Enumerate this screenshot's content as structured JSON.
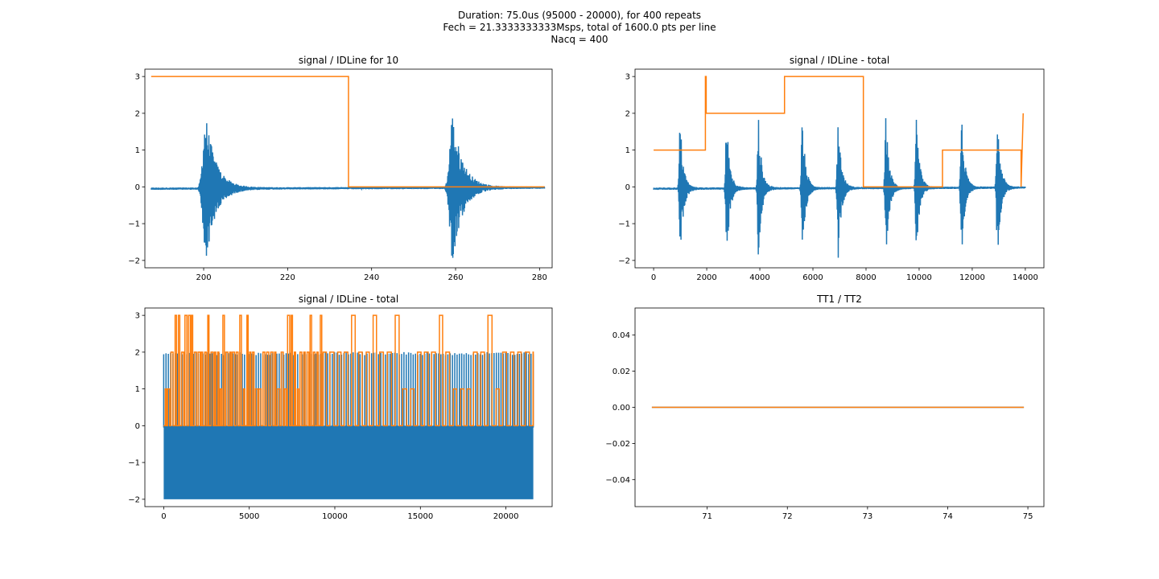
{
  "suptitle": {
    "line1": "Duration: 75.0us (95000 - 20000), for 400 repeats",
    "line2": "Fech = 21.3333333333Msps, total of 1600.0 pts per line",
    "line3": "Nacq = 400"
  },
  "colors": {
    "signal": "#1f77b4",
    "idline": "#ff7f0e",
    "axis": "#000000"
  },
  "chart_data": [
    {
      "type": "line",
      "title": "signal / IDLine for 10",
      "xlim": [
        186,
        283
      ],
      "ylim": [
        -2.2,
        3.2
      ],
      "xticks": [
        200,
        220,
        240,
        260,
        280
      ],
      "xtick_labels": [
        "200",
        "220",
        "240",
        "260",
        "280"
      ],
      "yticks": [
        -2,
        -1,
        0,
        1,
        2,
        3
      ],
      "ytick_labels": [
        "−2",
        "−1",
        "0",
        "1",
        "2",
        "3"
      ],
      "series": [
        {
          "name": "signal",
          "kind": "echo_bursts",
          "x_range": [
            187.5,
            281.2
          ],
          "baseline": [
            -0.05,
            -0.02
          ],
          "bursts": [
            {
              "center": 200.5,
              "amp": 2.0,
              "decay": 3.0
            },
            {
              "center": 259.3,
              "amp": 2.0,
              "decay": 3.0
            }
          ]
        },
        {
          "name": "IDLine",
          "kind": "step",
          "x": [
            187.5,
            234.5,
            234.5,
            281.2
          ],
          "y": [
            3,
            3,
            0,
            0
          ]
        }
      ]
    },
    {
      "type": "line",
      "title": "signal / IDLine - total",
      "xlim": [
        -700,
        14700
      ],
      "ylim": [
        -2.2,
        3.2
      ],
      "xticks": [
        0,
        2000,
        4000,
        6000,
        8000,
        10000,
        12000,
        14000
      ],
      "xtick_labels": [
        "0",
        "2000",
        "4000",
        "6000",
        "8000",
        "10000",
        "12000",
        "14000"
      ],
      "yticks": [
        -2,
        -1,
        0,
        1,
        2,
        3
      ],
      "ytick_labels": [
        "−2",
        "−1",
        "0",
        "1",
        "2",
        "3"
      ],
      "series": [
        {
          "name": "signal",
          "kind": "echo_bursts",
          "x_range": [
            0,
            14000
          ],
          "baseline": [
            -0.05,
            -0.02
          ],
          "bursts": [
            {
              "center": 1000,
              "amp": 1.9,
              "decay": 150
            },
            {
              "center": 2750,
              "amp": 2.0,
              "decay": 150
            },
            {
              "center": 3950,
              "amp": 1.95,
              "decay": 150
            },
            {
              "center": 5600,
              "amp": 1.95,
              "decay": 150
            },
            {
              "center": 6950,
              "amp": 1.95,
              "decay": 150
            },
            {
              "center": 8750,
              "amp": 1.95,
              "decay": 150
            },
            {
              "center": 9900,
              "amp": 1.85,
              "decay": 150
            },
            {
              "center": 11600,
              "amp": 1.95,
              "decay": 150
            },
            {
              "center": 12950,
              "amp": 1.95,
              "decay": 150
            }
          ]
        },
        {
          "name": "IDLine",
          "kind": "step",
          "x": [
            0,
            1950,
            1950,
            1980,
            1980,
            4930,
            4930,
            7900,
            7900,
            10880,
            10880,
            13840,
            13840,
            13920
          ],
          "y": [
            1,
            1,
            3,
            3,
            2,
            2,
            3,
            3,
            0,
            0,
            1,
            1,
            0,
            2
          ]
        }
      ]
    },
    {
      "type": "line",
      "title": "signal / IDLine - total",
      "xlim": [
        -1100,
        22700
      ],
      "ylim": [
        -2.2,
        3.2
      ],
      "xticks": [
        0,
        5000,
        10000,
        15000,
        20000
      ],
      "xtick_labels": [
        "0",
        "5000",
        "10000",
        "15000",
        "20000"
      ],
      "yticks": [
        -2,
        -1,
        0,
        1,
        2,
        3
      ],
      "ytick_labels": [
        "−2",
        "−1",
        "0",
        "1",
        "2",
        "3"
      ],
      "series": [
        {
          "name": "signal",
          "kind": "dense_band",
          "x_range": [
            0,
            21600
          ],
          "y_range": [
            -2.0,
            2.0
          ],
          "count": 160
        },
        {
          "name": "IDLine",
          "kind": "dense_steps",
          "x_range": [
            0,
            21600
          ],
          "levels": [
            0,
            1,
            2,
            3
          ],
          "dense_until": 9300,
          "count": 200
        }
      ]
    },
    {
      "type": "line",
      "title": "TT1 / TT2",
      "xlim": [
        70.1,
        75.2
      ],
      "ylim": [
        -0.055,
        0.055
      ],
      "xticks": [
        71,
        72,
        73,
        74,
        75
      ],
      "xtick_labels": [
        "71",
        "72",
        "73",
        "74",
        "75"
      ],
      "yticks": [
        -0.04,
        -0.02,
        0.0,
        0.02,
        0.04
      ],
      "ytick_labels": [
        "−0.04",
        "−0.02",
        "0.00",
        "0.02",
        "0.04"
      ],
      "series": [
        {
          "name": "TT1",
          "kind": "line",
          "x": [
            70.31,
            74.95
          ],
          "y": [
            0,
            0
          ]
        },
        {
          "name": "TT2",
          "kind": "line",
          "x": [
            70.31,
            74.95
          ],
          "y": [
            0,
            0
          ]
        }
      ]
    }
  ]
}
